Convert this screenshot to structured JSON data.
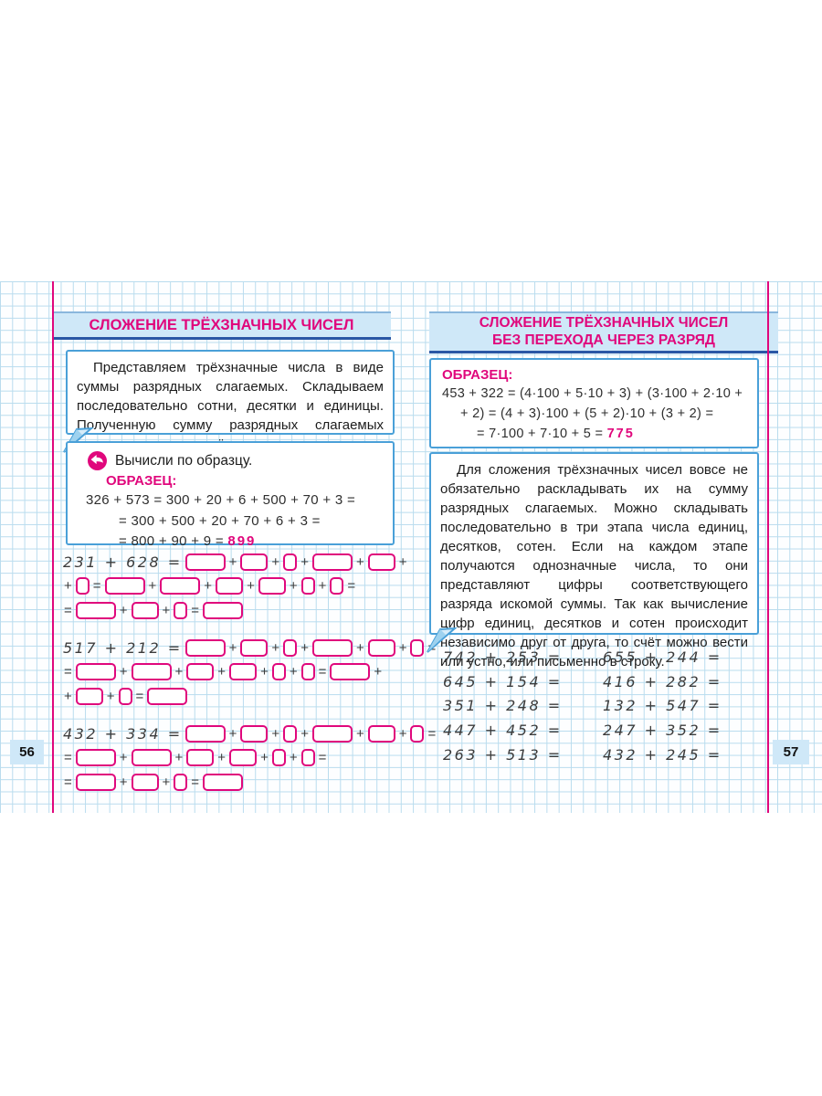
{
  "colors": {
    "accent_magenta": "#e0077c",
    "banner_bg": "#cfe8f8",
    "banner_underline": "#2a57a5",
    "box_border_blue": "#4aa0d8",
    "grid_line": "#b9dcee"
  },
  "left_page": {
    "page_number": "56",
    "title": "СЛОЖЕНИЕ ТРЁХЗНАЧНЫХ ЧИСЕЛ",
    "intro": "Представляем трёхзначные числа в виде суммы разрядных слагаемых. Складываем последовательно сотни, десятки и единицы. Полученную сумму разрядных слагаемых записываем в виде трёхзначного числа.",
    "task": {
      "instruction": "Вычисли по образцу.",
      "sample_label": "ОБРАЗЕЦ:",
      "sample_lines": [
        "326 + 573 = 300 + 20 + 6 + 500 + 70 + 3 =",
        "= 300 + 500 + 20 + 70 + 6 + 3 =",
        "= 800 + 90 + 9 ="
      ],
      "sample_answer": "899"
    },
    "exercises": [
      {
        "lines": [
          [
            "T:231 + 628 =",
            "B",
            "+",
            "M",
            "+",
            "S",
            "+",
            "B",
            "+",
            "M",
            "+"
          ],
          [
            "+",
            "S",
            "=",
            "B",
            "+",
            "B",
            "+",
            "M",
            "+",
            "M",
            "+",
            "S",
            "+",
            "S",
            "="
          ],
          [
            "=",
            "B",
            "+",
            "M",
            "+",
            "S",
            "=",
            "B"
          ]
        ]
      },
      {
        "lines": [
          [
            "T:517 + 212 =",
            "B",
            "+",
            "M",
            "+",
            "S",
            "+",
            "B",
            "+",
            "M",
            "+",
            "S",
            "="
          ],
          [
            "=",
            "B",
            "+",
            "B",
            "+",
            "M",
            "+",
            "M",
            "+",
            "S",
            "+",
            "S",
            "=",
            "B",
            "+"
          ],
          [
            "+",
            "M",
            "+",
            "S",
            "=",
            "B"
          ]
        ]
      },
      {
        "lines": [
          [
            "T:432 + 334 =",
            "B",
            "+",
            "M",
            "+",
            "S",
            "+",
            "B",
            "+",
            "M",
            "+",
            "S",
            "="
          ],
          [
            "=",
            "B",
            "+",
            "B",
            "+",
            "M",
            "+",
            "M",
            "+",
            "S",
            "+",
            "S",
            "="
          ],
          [
            "=",
            "B",
            "+",
            "M",
            "+",
            "S",
            "=",
            "B"
          ]
        ]
      }
    ]
  },
  "right_page": {
    "page_number": "57",
    "title_line1": "СЛОЖЕНИЕ ТРЁХЗНАЧНЫХ ЧИСЕЛ",
    "title_line2": "БЕЗ ПЕРЕХОДА ЧЕРЕЗ РАЗРЯД",
    "sample_label": "ОБРАЗЕЦ:",
    "sample_lines": [
      "453 + 322 = (4·100 + 5·10 + 3) + (3·100 + 2·10 +",
      "+ 2) = (4 + 3)·100 + (5 + 2)·10 + (3 + 2) =",
      "= 7·100 + 7·10 + 5 ="
    ],
    "sample_answer": "775",
    "paragraph": "Для сложения трёхзначных чисел вовсе не обязательно раскладывать их на сумму разрядных слагаемых. Можно складывать последовательно в три этапа числа единиц, десятков, сотен. Если на каждом этапе получаются однозначные числа, то они представляют цифры соответствующего разряда искомой суммы. Так как вычисление цифр единиц, десятков и сотен происходит независимо друг от друга, то счёт можно вести или устно, или письменно в строку.",
    "column1": [
      "742 + 253 =",
      "645 + 154 =",
      "351 + 248 =",
      "447 + 452 =",
      "263 + 513 ="
    ],
    "column2": [
      "655 + 244 =",
      "416 + 282 =",
      "132 + 547 =",
      "247 + 352 =",
      "432 + 245 ="
    ]
  }
}
